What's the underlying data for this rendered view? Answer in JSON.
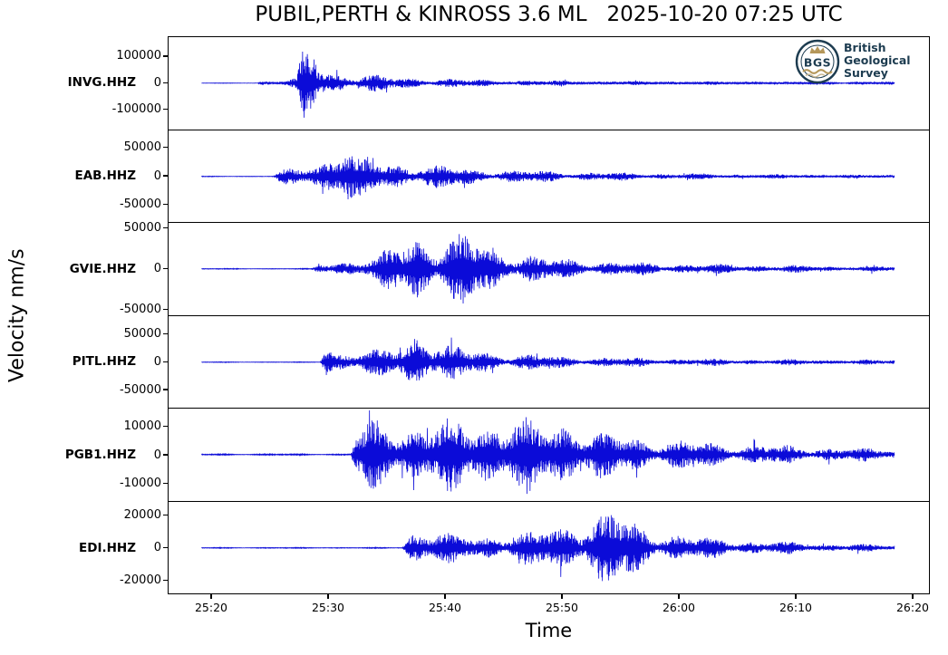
{
  "figure": {
    "title": "PUBIL,PERTH & KINROSS 3.6 ML   2025-10-20 07:25 UTC",
    "xlabel": "Time",
    "ylabel": "Velocity nm/s"
  },
  "logo": {
    "abbr": "BGS",
    "name_lines": [
      "British",
      "Geological",
      "Survey"
    ]
  },
  "colors": {
    "trace": "#0b0bd8",
    "axis": "#000000",
    "logo_navy": "#1d3c50",
    "logo_gold": "#b5975a"
  },
  "chart_data": {
    "type": "line",
    "title": "PUBIL,PERTH & KINROSS 3.6 ML 2025-10-20 07:25 UTC",
    "xlabel": "Time",
    "ylabel": "Velocity nm/s",
    "x_ticks": [
      "25:20",
      "25:30",
      "25:40",
      "25:50",
      "26:00",
      "26:10",
      "26:20"
    ],
    "x_axis_seconds": [
      1520,
      1580
    ],
    "grid": false,
    "stations": [
      {
        "label": "INVG.HHZ",
        "yticks": [
          100000,
          0,
          -100000
        ],
        "ylim": 171000,
        "envelope": [
          [
            1519.1,
            800
          ],
          [
            1523.9,
            800
          ],
          [
            1524.3,
            14000
          ],
          [
            1525.5,
            9000
          ],
          [
            1527.2,
            20000
          ],
          [
            1527.9,
            150000
          ],
          [
            1528.7,
            168000
          ],
          [
            1529.3,
            70000
          ],
          [
            1530.2,
            52000
          ],
          [
            1532,
            40000
          ],
          [
            1536,
            28000
          ],
          [
            1540,
            19000
          ],
          [
            1547,
            12000
          ],
          [
            1555,
            9000
          ],
          [
            1563,
            7000
          ],
          [
            1570,
            5500
          ],
          [
            1578.4,
            4500
          ]
        ]
      },
      {
        "label": "EAB.HHZ",
        "yticks": [
          50000,
          0,
          -50000
        ],
        "ylim": 80000,
        "envelope": [
          [
            1519.1,
            600
          ],
          [
            1525.3,
            600
          ],
          [
            1525.9,
            13000
          ],
          [
            1527.1,
            16000
          ],
          [
            1529.4,
            30000
          ],
          [
            1531.1,
            76000
          ],
          [
            1531.7,
            76000
          ],
          [
            1532.3,
            36000
          ],
          [
            1534.1,
            31000
          ],
          [
            1538,
            25000
          ],
          [
            1543.4,
            15000
          ],
          [
            1551.1,
            9500
          ],
          [
            1558.8,
            6500
          ],
          [
            1566.6,
            4800
          ],
          [
            1578.4,
            3200
          ]
        ]
      },
      {
        "label": "GVIE.HHZ",
        "yticks": [
          50000,
          0,
          -50000
        ],
        "ylim": 56000,
        "envelope": [
          [
            1519.1,
            500
          ],
          [
            1528.6,
            500
          ],
          [
            1529.2,
            8000
          ],
          [
            1531.8,
            12500
          ],
          [
            1534.1,
            15500
          ],
          [
            1536,
            38000
          ],
          [
            1537.6,
            54000
          ],
          [
            1539.5,
            40000
          ],
          [
            1542.2,
            52000
          ],
          [
            1544.1,
            30000
          ],
          [
            1548.8,
            16000
          ],
          [
            1555,
            9500
          ],
          [
            1562.7,
            6500
          ],
          [
            1570.4,
            4800
          ],
          [
            1578.4,
            3500
          ]
        ]
      },
      {
        "label": "PITL.HHZ",
        "yticks": [
          50000,
          0,
          -50000
        ],
        "ylim": 82000,
        "envelope": [
          [
            1519.1,
            600
          ],
          [
            1529.3,
            600
          ],
          [
            1529.8,
            58000
          ],
          [
            1530.4,
            21000
          ],
          [
            1531.8,
            23000
          ],
          [
            1534.1,
            26000
          ],
          [
            1536,
            31000
          ],
          [
            1537.3,
            66000
          ],
          [
            1538.4,
            66000
          ],
          [
            1539.6,
            37000
          ],
          [
            1541.8,
            29000
          ],
          [
            1544.1,
            21000
          ],
          [
            1548.8,
            13500
          ],
          [
            1555,
            9500
          ],
          [
            1562.7,
            7000
          ],
          [
            1578.4,
            4800
          ]
        ]
      },
      {
        "label": "PGB1.HHZ",
        "yticks": [
          10000,
          0,
          -10000
        ],
        "ylim": 16000,
        "envelope": [
          [
            1519.1,
            250
          ],
          [
            1531.9,
            250
          ],
          [
            1532.4,
            9500
          ],
          [
            1533.1,
            12500
          ],
          [
            1534.8,
            13500
          ],
          [
            1537.9,
            12500
          ],
          [
            1541,
            14000
          ],
          [
            1543.7,
            15500
          ],
          [
            1546.5,
            14500
          ],
          [
            1548.8,
            12500
          ],
          [
            1550.7,
            15500
          ],
          [
            1552.6,
            9500
          ],
          [
            1556.5,
            7000
          ],
          [
            1562.7,
            5000
          ],
          [
            1570.4,
            3400
          ],
          [
            1578.4,
            2500
          ]
        ]
      },
      {
        "label": "EDI.HHZ",
        "yticks": [
          20000,
          0,
          -20000
        ],
        "ylim": 28000,
        "envelope": [
          [
            1519.1,
            300
          ],
          [
            1536.3,
            300
          ],
          [
            1536.8,
            9500
          ],
          [
            1537.2,
            13500
          ],
          [
            1539.5,
            12000
          ],
          [
            1541,
            8500
          ],
          [
            1544.1,
            9500
          ],
          [
            1547.2,
            11500
          ],
          [
            1549.5,
            15500
          ],
          [
            1552,
            21000
          ],
          [
            1554.3,
            27500
          ],
          [
            1555.7,
            20000
          ],
          [
            1558,
            12500
          ],
          [
            1561.1,
            8500
          ],
          [
            1566.6,
            5000
          ],
          [
            1572,
            3200
          ],
          [
            1578.4,
            2200
          ]
        ]
      }
    ]
  }
}
